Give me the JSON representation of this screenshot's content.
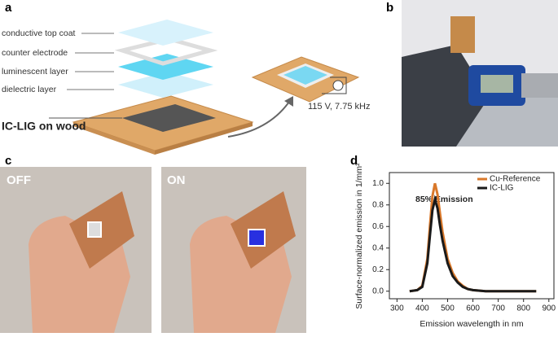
{
  "figure": {
    "panel_a": {
      "label": "a",
      "layers": [
        "conductive top coat",
        "counter electrode",
        "luminescent layer",
        "dielectric layer"
      ],
      "substrate": "IC-LIG on wood",
      "drive": "115 V, 7.75 kHz"
    },
    "panel_b": {
      "label": "b"
    },
    "panel_c": {
      "label": "c",
      "off": "OFF",
      "on": "ON"
    },
    "panel_d": {
      "label": "d"
    }
  },
  "chart_data": {
    "type": "line",
    "x_label": "Emission wavelength in nm",
    "y_label": "Surface-normalized emission in 1/mm²",
    "annotation": "85% Emission",
    "x": [
      350,
      380,
      400,
      420,
      430,
      440,
      450,
      460,
      470,
      480,
      500,
      520,
      540,
      560,
      580,
      600,
      650,
      700,
      750,
      800,
      850
    ],
    "series": [
      {
        "name": "Cu-Reference",
        "color": "#d9782a",
        "values": [
          0,
          0.01,
          0.05,
          0.3,
          0.6,
          0.88,
          1.0,
          0.9,
          0.72,
          0.55,
          0.3,
          0.17,
          0.09,
          0.05,
          0.02,
          0.01,
          0,
          0,
          0,
          0,
          0
        ]
      },
      {
        "name": "IC-LIG",
        "color": "#1a1a1a",
        "values": [
          0,
          0.01,
          0.04,
          0.26,
          0.51,
          0.75,
          0.85,
          0.77,
          0.61,
          0.47,
          0.26,
          0.14,
          0.08,
          0.04,
          0.02,
          0.01,
          0,
          0,
          0,
          0,
          0
        ]
      }
    ],
    "xlim": [
      270,
      920
    ],
    "xticks": [
      300,
      400,
      500,
      600,
      700,
      800,
      900
    ],
    "ylim": [
      -0.07,
      1.1
    ],
    "yticks": [
      {
        "value": 0,
        "label": "0.0"
      },
      0.2,
      0.4,
      0.6,
      0.8,
      {
        "value": 1,
        "label": "1.0"
      }
    ],
    "legend": "upper right"
  }
}
